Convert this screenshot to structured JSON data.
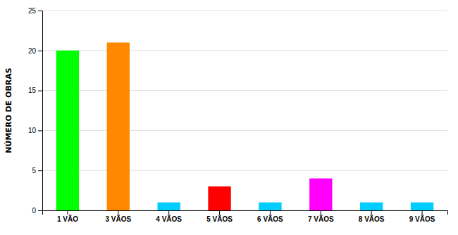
{
  "chart_data": {
    "type": "bar",
    "categories": [
      "1 VÃO",
      "3 VÃOS",
      "4 VÃOS",
      "5 VÃOS",
      "6 VÃOS",
      "7 VÃOS",
      "8 VÃOS",
      "9 VÃOS"
    ],
    "values": [
      20,
      21,
      1,
      3,
      1,
      4,
      1,
      1
    ],
    "colors": [
      "#00ff00",
      "#ff8800",
      "#00ccff",
      "#ff0000",
      "#00ccff",
      "#ff00ff",
      "#00ccff",
      "#00ccff"
    ],
    "ylabel": "NÚMERO DE OBRAS",
    "ylim": [
      0,
      25
    ],
    "yticks": [
      0,
      5,
      10,
      15,
      20,
      25
    ],
    "grid": true
  }
}
